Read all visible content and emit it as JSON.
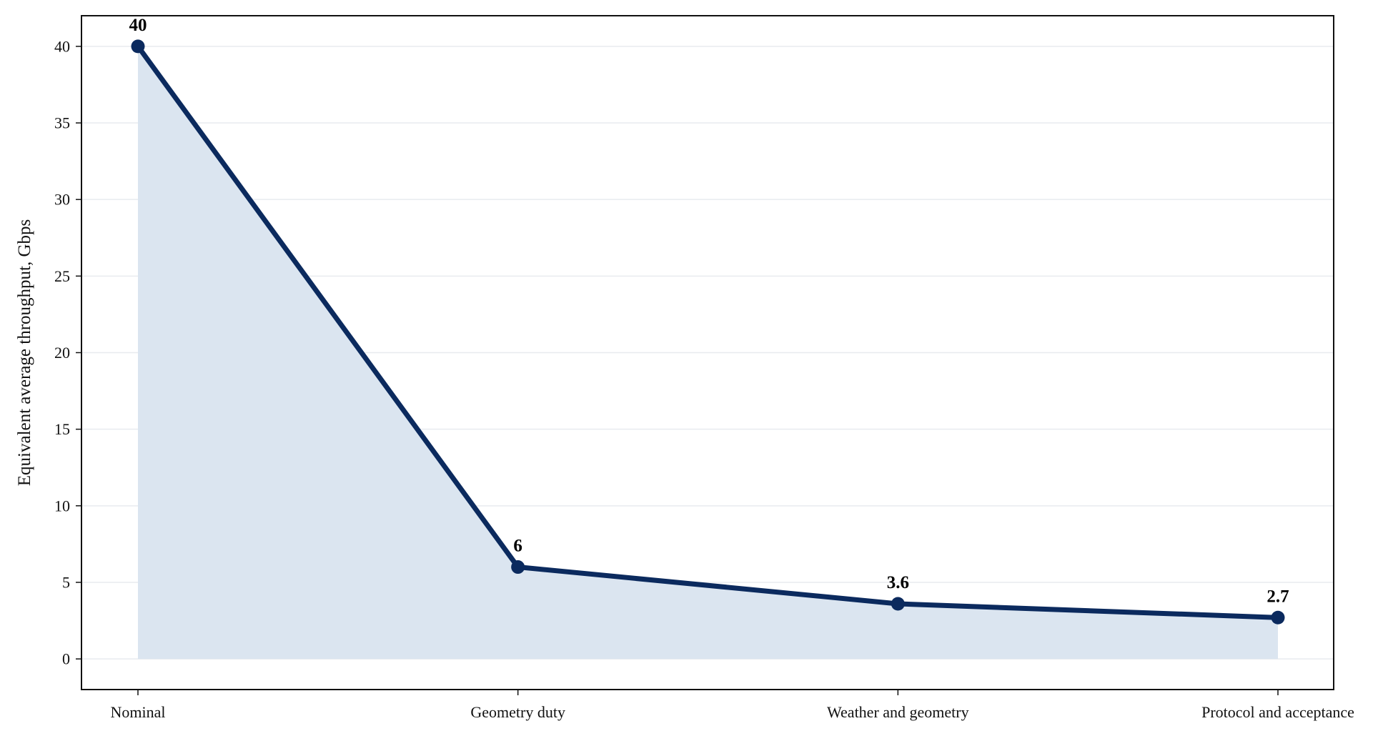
{
  "chart_data": {
    "type": "area",
    "categories": [
      "Nominal",
      "Geometry duty",
      "Weather and geometry",
      "Protocol and acceptance"
    ],
    "values": [
      40,
      6,
      3.6,
      2.7
    ],
    "data_labels": [
      "40",
      "6",
      "3.6",
      "2.7"
    ],
    "title": "",
    "xlabel": "",
    "ylabel": "Equivalent average throughput, Gbps",
    "ylim": [
      -2,
      42
    ],
    "yticks": [
      0,
      5,
      10,
      15,
      20,
      25,
      30,
      35,
      40
    ],
    "grid": "horizontal",
    "legend": "none",
    "colors": {
      "line": "#0b2a5e",
      "fill": "#dbe5f0",
      "grid": "#e8ebef",
      "axis": "#111111"
    }
  }
}
